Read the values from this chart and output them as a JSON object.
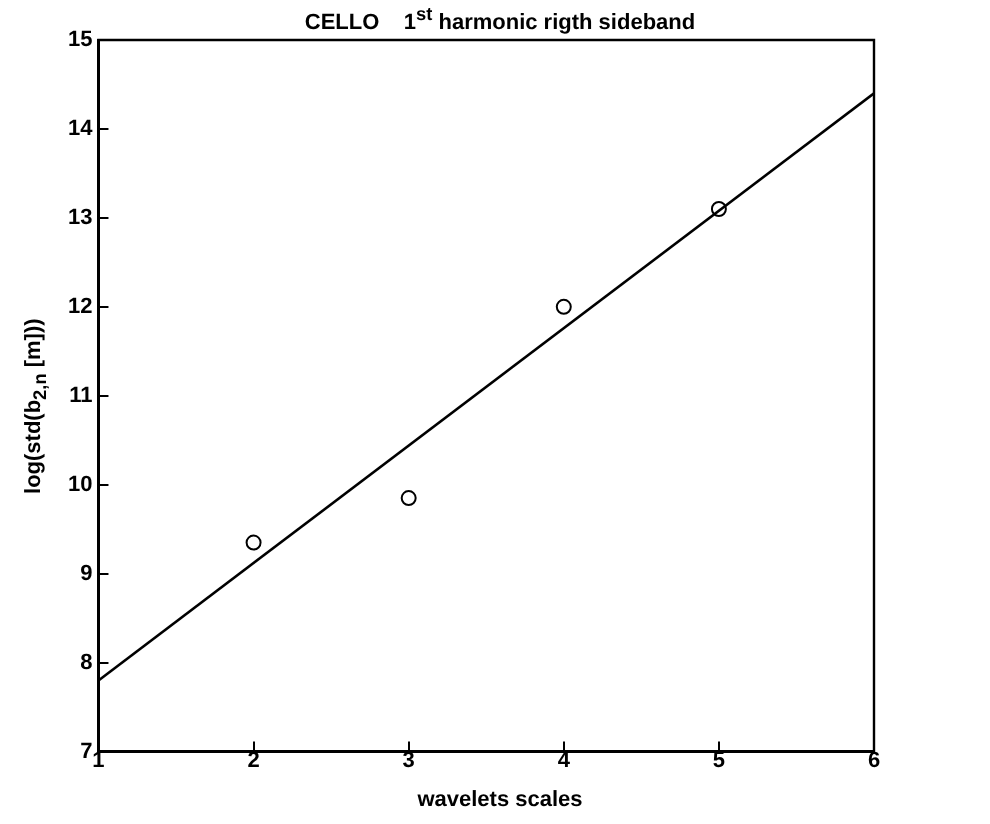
{
  "chart_data": {
    "type": "scatter",
    "title": "CELLO    1$^{st}$ harmonic rigth sideband",
    "xlabel": "wavelets scales",
    "ylabel": "log(std(b$_{2,n}$ [m]))",
    "x": [
      2,
      3,
      4,
      5
    ],
    "series": [
      {
        "color": "#000000",
        "values": [
          9.35,
          9.85,
          12.0,
          13.1
        ],
        "marker": "circle"
      },
      {
        "type": "line",
        "x": [
          1,
          6
        ],
        "color": "#000000",
        "values": [
          7.8,
          14.4
        ],
        "marker": "none",
        "line_style": "solid"
      }
    ],
    "xlim": [
      1,
      6
    ],
    "xticks": [
      1,
      2,
      3,
      4,
      5,
      6
    ],
    "ylim": [
      7,
      15
    ],
    "yticks": [
      7,
      8,
      9,
      10,
      11,
      12,
      13,
      14,
      15
    ],
    "grid": false,
    "legend": false
  }
}
